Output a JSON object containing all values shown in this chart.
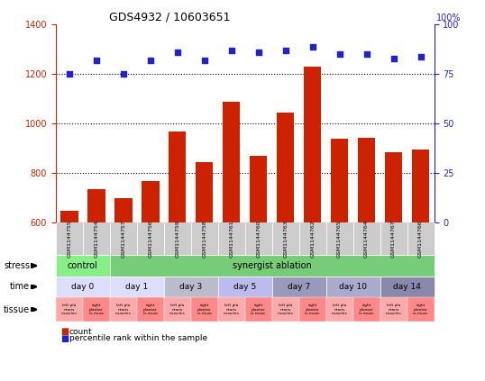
{
  "title": "GDS4932 / 10603651",
  "samples": [
    "GSM1144755",
    "GSM1144754",
    "GSM1144757",
    "GSM1144756",
    "GSM1144759",
    "GSM1144758",
    "GSM1144761",
    "GSM1144760",
    "GSM1144763",
    "GSM1144762",
    "GSM1144765",
    "GSM1144764",
    "GSM1144767",
    "GSM1144766"
  ],
  "counts": [
    650,
    735,
    700,
    770,
    970,
    845,
    1090,
    870,
    1045,
    1230,
    940,
    945,
    885,
    895
  ],
  "percentiles": [
    75,
    82,
    75,
    82,
    86,
    82,
    87,
    86,
    87,
    89,
    85,
    85,
    83,
    84
  ],
  "bar_color": "#cc2200",
  "dot_color": "#2222cc",
  "ylim_left": [
    600,
    1400
  ],
  "ylim_right": [
    0,
    100
  ],
  "yticks_left": [
    600,
    800,
    1000,
    1200,
    1400
  ],
  "yticks_right": [
    0,
    25,
    50,
    75,
    100
  ],
  "dotted_line_values": [
    800,
    1000,
    1200
  ],
  "left_axis_color": "#cc2200",
  "right_axis_color": "#2222cc",
  "bg_color": "#ffffff",
  "chart_bg": "#ffffff",
  "stress_regions": [
    {
      "start": 0,
      "end": 2,
      "color": "#88ee88",
      "label": "control"
    },
    {
      "start": 2,
      "end": 14,
      "color": "#77cc77",
      "label": "synergist ablation"
    }
  ],
  "time_regions": [
    {
      "start": 0,
      "end": 2,
      "color": "#ddddff",
      "label": "day 0"
    },
    {
      "start": 2,
      "end": 4,
      "color": "#ddddff",
      "label": "day 1"
    },
    {
      "start": 4,
      "end": 6,
      "color": "#bbbbcc",
      "label": "day 3"
    },
    {
      "start": 6,
      "end": 8,
      "color": "#bbbbee",
      "label": "day 5"
    },
    {
      "start": 8,
      "end": 10,
      "color": "#9999bb",
      "label": "day 7"
    },
    {
      "start": 10,
      "end": 12,
      "color": "#aaaacc",
      "label": "day 10"
    },
    {
      "start": 12,
      "end": 14,
      "color": "#8888aa",
      "label": "day 14"
    }
  ],
  "tissue_colors": [
    "#ffaaaa",
    "#ff8888"
  ],
  "tissue_labels": [
    "left pla\nntaris\nmuscles",
    "right\nplantar\nis musc"
  ],
  "sample_box_color": "#cccccc",
  "row_label_color": "#000000",
  "legend_count_color": "#cc2200",
  "legend_pct_color": "#2222cc"
}
